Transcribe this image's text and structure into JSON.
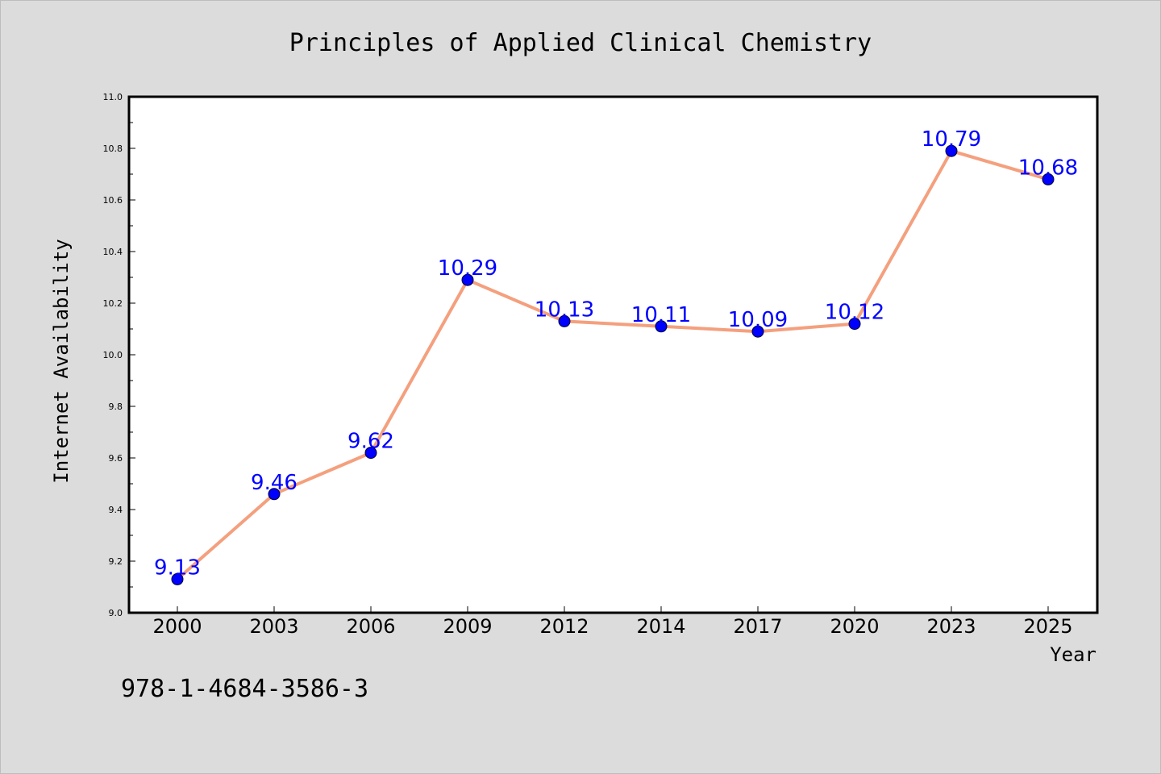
{
  "colors": {
    "background": "#dcdcdc",
    "plot_background": "#ffffff",
    "line": "#f4a07e",
    "marker": "#0000ff",
    "data_label": "#0000ff"
  },
  "footer": {
    "isbn": "978-1-4684-3586-3"
  },
  "chart_data": {
    "type": "line",
    "title": "Principles of Applied Clinical Chemistry",
    "xlabel": "Year",
    "ylabel": "Internet Availability",
    "categories": [
      "2000",
      "2003",
      "2006",
      "2009",
      "2012",
      "2014",
      "2017",
      "2020",
      "2023",
      "2025"
    ],
    "series": [
      {
        "values": [
          9.13,
          9.46,
          9.62,
          10.29,
          10.13,
          10.11,
          10.09,
          10.12,
          10.79,
          10.68
        ],
        "labels": [
          "9.13",
          "9.46",
          "9.62",
          "10.29",
          "10.13",
          "10.11",
          "10.09",
          "10.12",
          "10.79",
          "10.68"
        ]
      }
    ],
    "ylim": [
      9.0,
      11.0
    ],
    "yticks": [
      "9.0",
      "9.2",
      "9.4",
      "9.6",
      "9.8",
      "10.0",
      "10.2",
      "10.4",
      "10.6",
      "10.8",
      "11.0"
    ],
    "grid": false,
    "legend": "none"
  }
}
